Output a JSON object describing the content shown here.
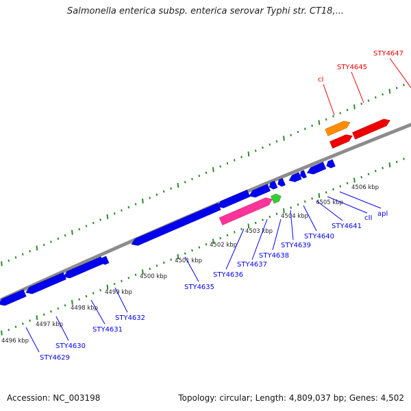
{
  "title": "Salmonella enterica subsp. enterica serovar Typhi str. CT18,...",
  "footer": {
    "accession": "Accession: NC_003198",
    "summary": "Topology: circular; Length: 4,809,037 bp; Genes: 4,502"
  },
  "colors": {
    "backbone": "#8c8c8c",
    "tick": "#2a8a2a",
    "forward_gene": "#ee0000",
    "reverse_gene": "#0000ee",
    "orange_gene": "#ff8c00",
    "pink_gene": "#ff3399",
    "green_gene": "#33cc33"
  },
  "ruler_ticks": [
    {
      "label": "4496 kbp"
    },
    {
      "label": "4497 kbp"
    },
    {
      "label": "4498 kbp"
    },
    {
      "label": "4499 kbp"
    },
    {
      "label": "4500 kbp"
    },
    {
      "label": "4501 kbp"
    },
    {
      "label": "4502 kbp"
    },
    {
      "label": "4503 kbp"
    },
    {
      "label": "4504 kbp"
    },
    {
      "label": "4505 kbp"
    },
    {
      "label": "4506 kbp"
    }
  ],
  "gene_labels": {
    "forward": [
      {
        "label": "cI"
      },
      {
        "label": "STY4645"
      },
      {
        "label": "STY4647"
      }
    ],
    "reverse": [
      {
        "label": "STY4629"
      },
      {
        "label": "STY4630"
      },
      {
        "label": "STY4631"
      },
      {
        "label": "STY4632"
      },
      {
        "label": "STY4635"
      },
      {
        "label": "STY4636"
      },
      {
        "label": "STY4637"
      },
      {
        "label": "STY4638"
      },
      {
        "label": "STY4639"
      },
      {
        "label": "STY4640"
      },
      {
        "label": "STY4641"
      },
      {
        "label": "cII"
      },
      {
        "label": "apl"
      }
    ]
  }
}
